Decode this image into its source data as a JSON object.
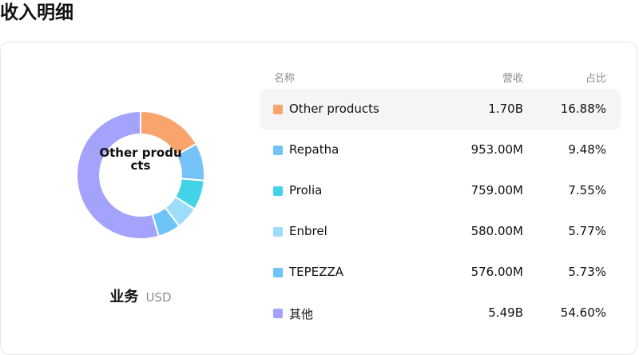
{
  "page_title": "收入明细",
  "donut": {
    "center_label": "Other products",
    "values": [
      16.88,
      9.48,
      7.55,
      5.77,
      5.73,
      54.6
    ],
    "colors": [
      "#f9a46d",
      "#74c2f7",
      "#43d3e8",
      "#9edcfa",
      "#6ec3f8",
      "#a3a3fb"
    ]
  },
  "segment": {
    "name": "业务",
    "currency": "USD"
  },
  "table": {
    "headers": {
      "name": "名称",
      "revenue": "营收",
      "share": "占比"
    },
    "rows": [
      {
        "name": "Other products",
        "revenue": "1.70B",
        "share": "16.88%",
        "color": "#f9a46d"
      },
      {
        "name": "Repatha",
        "revenue": "953.00M",
        "share": "9.48%",
        "color": "#74c2f7"
      },
      {
        "name": "Prolia",
        "revenue": "759.00M",
        "share": "7.55%",
        "color": "#43d3e8"
      },
      {
        "name": "Enbrel",
        "revenue": "580.00M",
        "share": "5.77%",
        "color": "#9edcfa"
      },
      {
        "name": "TEPEZZA",
        "revenue": "576.00M",
        "share": "5.73%",
        "color": "#6ec3f8"
      },
      {
        "name": "其他",
        "revenue": "5.49B",
        "share": "54.60%",
        "color": "#a3a3fb"
      }
    ]
  }
}
